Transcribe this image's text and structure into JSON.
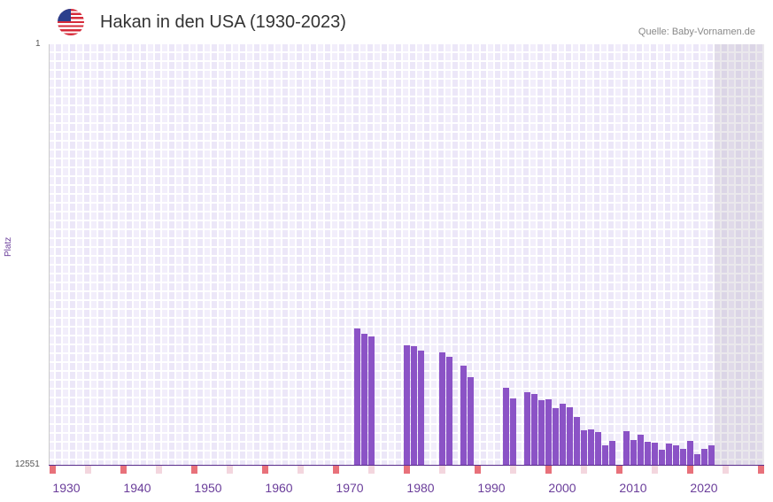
{
  "header": {
    "title": "Hakan in den USA (1930-2023)",
    "source": "Quelle: Baby-Vornamen.de",
    "flag_icon": "us-flag-icon"
  },
  "chart_data": {
    "type": "bar",
    "title": "Hakan in den USA (1930-2023)",
    "ylabel": "Platz",
    "ylim": [
      12551,
      1
    ],
    "y_ticks": [
      "1",
      "12551"
    ],
    "x_ticks": [
      "1930",
      "1940",
      "1950",
      "1960",
      "1970",
      "1980",
      "1990",
      "2000",
      "2010",
      "2020"
    ],
    "xlim": [
      1928,
      2028
    ],
    "shaded_from": 2022,
    "bar_color": "#8b53c6",
    "x": [
      1971,
      1972,
      1973,
      1978,
      1979,
      1980,
      1983,
      1984,
      1986,
      1987,
      1992,
      1993,
      1995,
      1996,
      1997,
      1998,
      1999,
      2000,
      2001,
      2002,
      2003,
      2004,
      2005,
      2006,
      2007,
      2009,
      2010,
      2011,
      2012,
      2013,
      2014,
      2015,
      2016,
      2017,
      2018,
      2019,
      2020,
      2021
    ],
    "values": [
      8482,
      8640,
      8720,
      8984,
      9010,
      9143,
      9195,
      9327,
      9591,
      9935,
      10252,
      10569,
      10384,
      10437,
      10622,
      10596,
      10860,
      10728,
      10834,
      11124,
      11521,
      11494,
      11574,
      11970,
      11837,
      11547,
      11811,
      11653,
      11864,
      11890,
      12102,
      11917,
      11970,
      12076,
      11837,
      12234,
      12076,
      11970
    ]
  }
}
